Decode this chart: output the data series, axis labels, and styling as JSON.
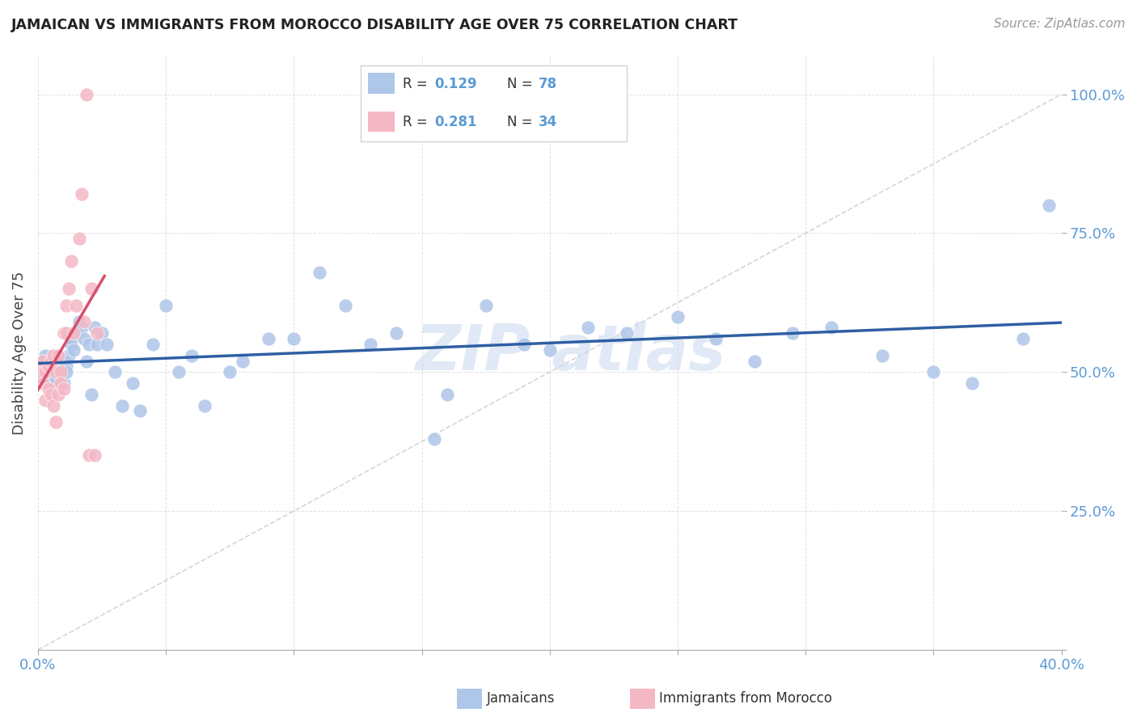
{
  "title": "JAMAICAN VS IMMIGRANTS FROM MOROCCO DISABILITY AGE OVER 75 CORRELATION CHART",
  "source": "Source: ZipAtlas.com",
  "ylabel": "Disability Age Over 75",
  "xlim": [
    0.0,
    0.4
  ],
  "ylim": [
    0.0,
    1.07
  ],
  "watermark": "ZIPAtlas",
  "jam_color": "#aec6e8",
  "mor_color": "#f4b8c5",
  "jam_line_color": "#2e5fa3",
  "mor_line_color": "#d94f6b",
  "ytick_color": "#5b9bd5",
  "xtick_color": "#5b9bd5",
  "jamaicans_x": [
    0.001,
    0.001,
    0.002,
    0.002,
    0.002,
    0.003,
    0.003,
    0.003,
    0.004,
    0.004,
    0.004,
    0.004,
    0.005,
    0.005,
    0.005,
    0.006,
    0.006,
    0.006,
    0.007,
    0.007,
    0.007,
    0.008,
    0.008,
    0.009,
    0.009,
    0.01,
    0.01,
    0.011,
    0.011,
    0.012,
    0.013,
    0.013,
    0.014,
    0.015,
    0.016,
    0.017,
    0.018,
    0.019,
    0.02,
    0.021,
    0.022,
    0.023,
    0.025,
    0.027,
    0.03,
    0.033,
    0.037,
    0.04,
    0.045,
    0.05,
    0.055,
    0.06,
    0.065,
    0.075,
    0.08,
    0.09,
    0.1,
    0.11,
    0.12,
    0.13,
    0.14,
    0.155,
    0.16,
    0.175,
    0.19,
    0.2,
    0.215,
    0.23,
    0.25,
    0.265,
    0.28,
    0.295,
    0.31,
    0.33,
    0.35,
    0.365,
    0.385,
    0.395
  ],
  "jamaicans_y": [
    0.51,
    0.5,
    0.52,
    0.5,
    0.49,
    0.51,
    0.5,
    0.53,
    0.52,
    0.51,
    0.5,
    0.49,
    0.52,
    0.5,
    0.48,
    0.51,
    0.5,
    0.53,
    0.51,
    0.5,
    0.49,
    0.52,
    0.5,
    0.51,
    0.5,
    0.52,
    0.48,
    0.51,
    0.5,
    0.53,
    0.55,
    0.56,
    0.54,
    0.57,
    0.59,
    0.58,
    0.56,
    0.52,
    0.55,
    0.46,
    0.58,
    0.55,
    0.57,
    0.55,
    0.5,
    0.44,
    0.48,
    0.43,
    0.55,
    0.62,
    0.5,
    0.53,
    0.44,
    0.5,
    0.52,
    0.56,
    0.56,
    0.68,
    0.62,
    0.55,
    0.57,
    0.38,
    0.46,
    0.62,
    0.55,
    0.54,
    0.58,
    0.57,
    0.6,
    0.56,
    0.52,
    0.57,
    0.58,
    0.53,
    0.5,
    0.48,
    0.56,
    0.8
  ],
  "morocco_x": [
    0.001,
    0.001,
    0.002,
    0.002,
    0.003,
    0.003,
    0.004,
    0.004,
    0.005,
    0.005,
    0.006,
    0.006,
    0.007,
    0.007,
    0.008,
    0.008,
    0.009,
    0.009,
    0.01,
    0.01,
    0.011,
    0.011,
    0.012,
    0.013,
    0.014,
    0.015,
    0.016,
    0.017,
    0.018,
    0.019,
    0.02,
    0.021,
    0.022,
    0.023
  ],
  "morocco_y": [
    0.51,
    0.5,
    0.52,
    0.48,
    0.5,
    0.45,
    0.51,
    0.47,
    0.52,
    0.46,
    0.53,
    0.44,
    0.5,
    0.41,
    0.46,
    0.53,
    0.5,
    0.48,
    0.47,
    0.57,
    0.62,
    0.57,
    0.65,
    0.7,
    0.57,
    0.62,
    0.74,
    0.82,
    0.59,
    1.0,
    0.35,
    0.65,
    0.35,
    0.57
  ]
}
